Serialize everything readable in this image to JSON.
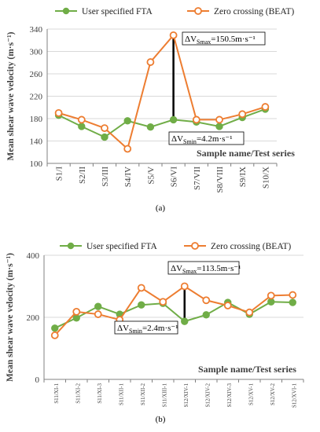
{
  "colors": {
    "fta": "#70ad47",
    "beat": "#ed7d31",
    "axis": "#808080",
    "grid": "#d9d9d9",
    "text": "#000000",
    "ytext": "#404040"
  },
  "chart_data": [
    {
      "type": "line",
      "panel_label": "(a)",
      "ylabel": "Mean shear wave velocity (m·s⁻¹)",
      "xlabel": "Sample name/Test series",
      "ylim": [
        100,
        340
      ],
      "yticks": [
        100,
        140,
        180,
        220,
        260,
        300,
        340
      ],
      "grid": true,
      "legend_position": "top",
      "categories": [
        "S1/I",
        "S2/II",
        "S3/III",
        "S4/IV",
        "S5/V",
        "S6/VI",
        "S7/VII",
        "S8/VIII",
        "S9/IX",
        "S10/X"
      ],
      "series": [
        {
          "name": "User specified FTA",
          "values": [
            186,
            166,
            147,
            176,
            165,
            178,
            174,
            166,
            182,
            197
          ]
        },
        {
          "name": "Zero crossing (BEAT)",
          "values": [
            190,
            178,
            163,
            126,
            281,
            329,
            178,
            178,
            188,
            201
          ]
        }
      ],
      "annotations": [
        {
          "text": "ΔV_Smax=150.5m·s⁻¹",
          "category_index": 5
        },
        {
          "text": "ΔV_Smin=4.2m·s⁻¹",
          "category_index": 6
        }
      ]
    },
    {
      "type": "line",
      "panel_label": "(b)",
      "ylabel": "Mean shear wave velocity (m·s⁻¹)",
      "xlabel": "Sample name/Test series",
      "ylim": [
        0,
        400
      ],
      "yticks": [
        0,
        200,
        400
      ],
      "grid": true,
      "legend_position": "top",
      "categories": [
        "S11/XI-1",
        "S11/XI-2",
        "S11/XI-3",
        "S11/XII-1",
        "S11/XII-2",
        "S11/XIII-1",
        "S12/XIV-1",
        "S12/XIV-2",
        "S12/XIV-3",
        "S12/XV-1",
        "S12/XV-2",
        "S12/XVI-1"
      ],
      "series": [
        {
          "name": "User specified FTA",
          "values": [
            165,
            198,
            235,
            210,
            240,
            245,
            187,
            208,
            248,
            210,
            250,
            248
          ]
        },
        {
          "name": "Zero crossing (BEAT)",
          "values": [
            142,
            218,
            210,
            192,
            295,
            250,
            300,
            255,
            238,
            216,
            270,
            272
          ]
        }
      ],
      "annotations": [
        {
          "text": "ΔV_Smax=113.5m·s⁻¹",
          "category_index": 6
        },
        {
          "text": "ΔV_Smin=2.4m·s⁻¹",
          "category_index": 5
        }
      ]
    }
  ]
}
